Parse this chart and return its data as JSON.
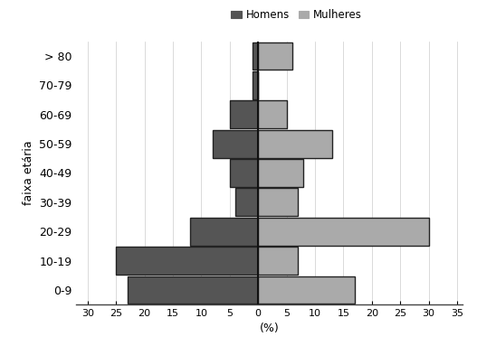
{
  "age_groups": [
    "0-9",
    "10-19",
    "20-29",
    "30-39",
    "40-49",
    "50-59",
    "60-69",
    "70-79",
    "> 80"
  ],
  "homens": [
    23,
    25,
    12,
    4,
    5,
    8,
    5,
    1,
    1
  ],
  "mulheres": [
    17,
    7,
    30,
    7,
    8,
    13,
    5,
    0,
    6
  ],
  "color_homens": "#555555",
  "color_mulheres": "#aaaaaa",
  "xlabel": "(%)",
  "ylabel": "faixa etária",
  "xlim": [
    -32,
    36
  ],
  "xticks": [
    -30,
    -25,
    -20,
    -15,
    -10,
    -5,
    0,
    5,
    10,
    15,
    20,
    25,
    30,
    35
  ],
  "xticklabels": [
    "30",
    "25",
    "20",
    "15",
    "10",
    "5",
    "0",
    "5",
    "10",
    "15",
    "20",
    "25",
    "30",
    "35"
  ],
  "legend_homens": "Homens",
  "legend_mulheres": "Mulheres",
  "bar_height": 0.95,
  "background_color": "#ffffff",
  "edgecolor": "#222222",
  "edgelinewidth": 1.0
}
